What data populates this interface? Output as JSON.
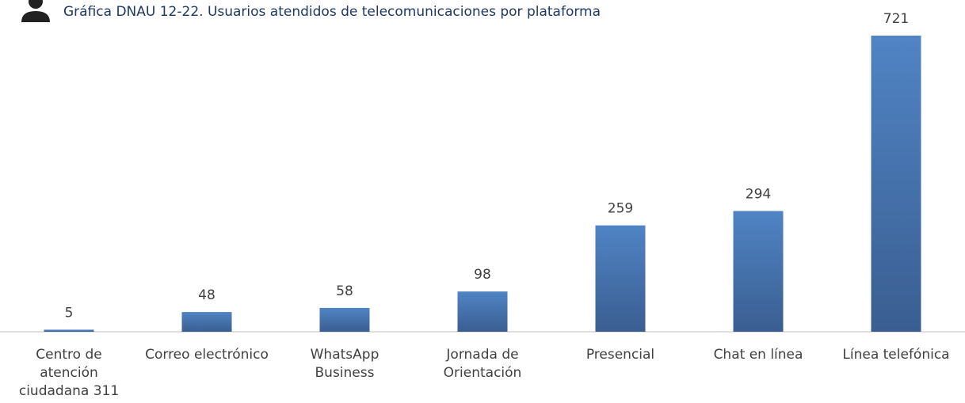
{
  "chart_data": {
    "type": "bar",
    "title": "Gráfica DNAU 12-22. Usuarios atendidos de telecomunicaciones por plataforma",
    "categories": [
      "Centro de\natención\nciudadana 311",
      "Correo electrónico",
      "WhatsApp\nBusiness",
      "Jornada de\nOrientación",
      "Presencial",
      "Chat en línea",
      "Línea telefónica"
    ],
    "values": [
      5,
      48,
      58,
      98,
      259,
      294,
      721
    ],
    "color": "#4a7ab5"
  }
}
